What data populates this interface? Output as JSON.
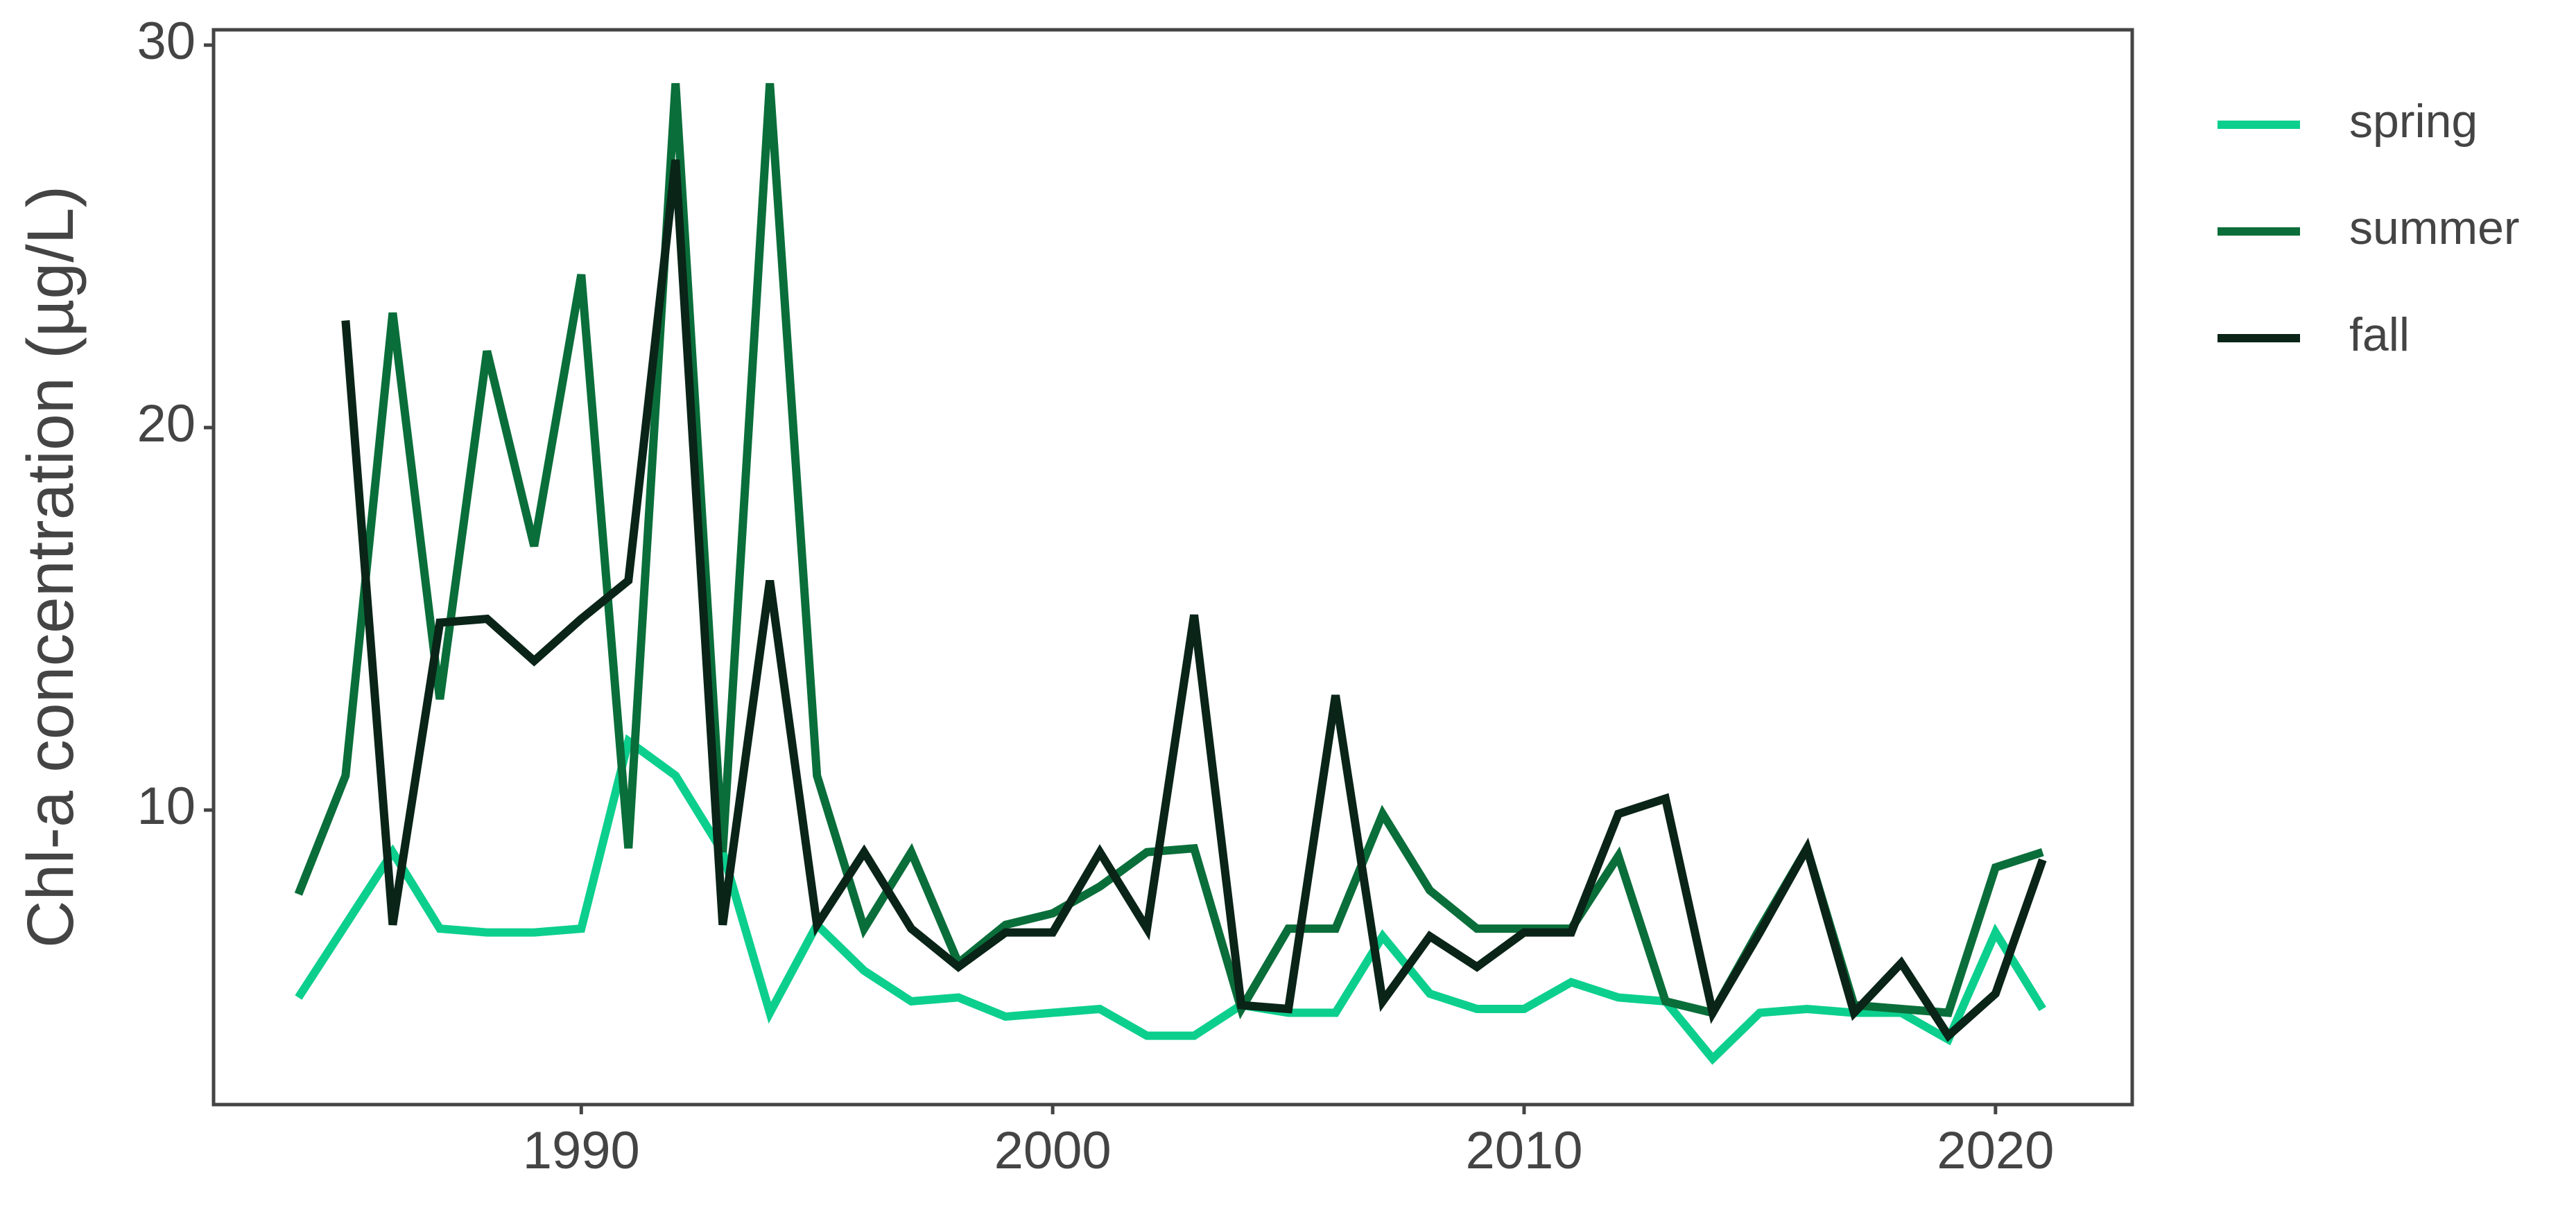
{
  "chart_data": {
    "type": "line",
    "y_label": "Chl-a concentration (µg/L)",
    "x": [
      1984,
      1985,
      1986,
      1987,
      1988,
      1989,
      1990,
      1991,
      1992,
      1993,
      1994,
      1995,
      1996,
      1997,
      1998,
      1999,
      2000,
      2001,
      2002,
      2003,
      2004,
      2005,
      2006,
      2007,
      2008,
      2009,
      2010,
      2011,
      2012,
      2013,
      2014,
      2015,
      2016,
      2017,
      2018,
      2019,
      2020,
      2021
    ],
    "series": [
      {
        "name": "spring",
        "color": "#0ccf8e",
        "values": [
          5.1,
          7.0,
          8.9,
          6.9,
          6.8,
          6.8,
          6.9,
          11.8,
          10.9,
          8.9,
          4.7,
          7.0,
          5.8,
          5.0,
          5.1,
          4.6,
          4.7,
          4.8,
          4.1,
          4.1,
          4.9,
          4.7,
          4.7,
          6.7,
          5.2,
          4.8,
          4.8,
          5.5,
          5.1,
          5.0,
          3.5,
          4.7,
          4.8,
          4.7,
          4.7,
          4.0,
          6.8,
          4.8
        ]
      },
      {
        "name": "summer",
        "color": "#0a6e3a",
        "values": [
          7.8,
          10.9,
          23.0,
          12.9,
          22.0,
          16.9,
          24.0,
          9.0,
          29.0,
          8.9,
          29.0,
          10.9,
          6.9,
          8.9,
          6.0,
          7.0,
          7.3,
          8.0,
          8.9,
          9.0,
          4.8,
          6.9,
          6.9,
          9.9,
          7.9,
          6.9,
          6.9,
          6.9,
          8.8,
          5.0,
          4.7,
          6.9,
          9.0,
          4.9,
          4.8,
          4.7,
          8.5,
          8.9
        ]
      },
      {
        "name": "fall",
        "color": "#0a2418",
        "values": [
          null,
          22.8,
          7.0,
          14.9,
          15.0,
          13.9,
          15.0,
          16.0,
          27.0,
          7.0,
          16.0,
          7.0,
          8.9,
          6.9,
          5.9,
          6.8,
          6.8,
          8.9,
          6.9,
          15.1,
          4.9,
          4.8,
          13.0,
          5.0,
          6.7,
          5.9,
          6.8,
          6.8,
          9.9,
          10.3,
          4.7,
          6.8,
          9.0,
          4.7,
          6.0,
          4.1,
          5.2,
          8.7
        ]
      }
    ],
    "xlim": [
      1982.2,
      2022.9
    ],
    "xticks": [
      1990,
      2000,
      2010,
      2020
    ],
    "ylim": [
      2.3,
      30.4
    ],
    "yticks": [
      10,
      20,
      30
    ],
    "grid": false,
    "legend": "right"
  }
}
